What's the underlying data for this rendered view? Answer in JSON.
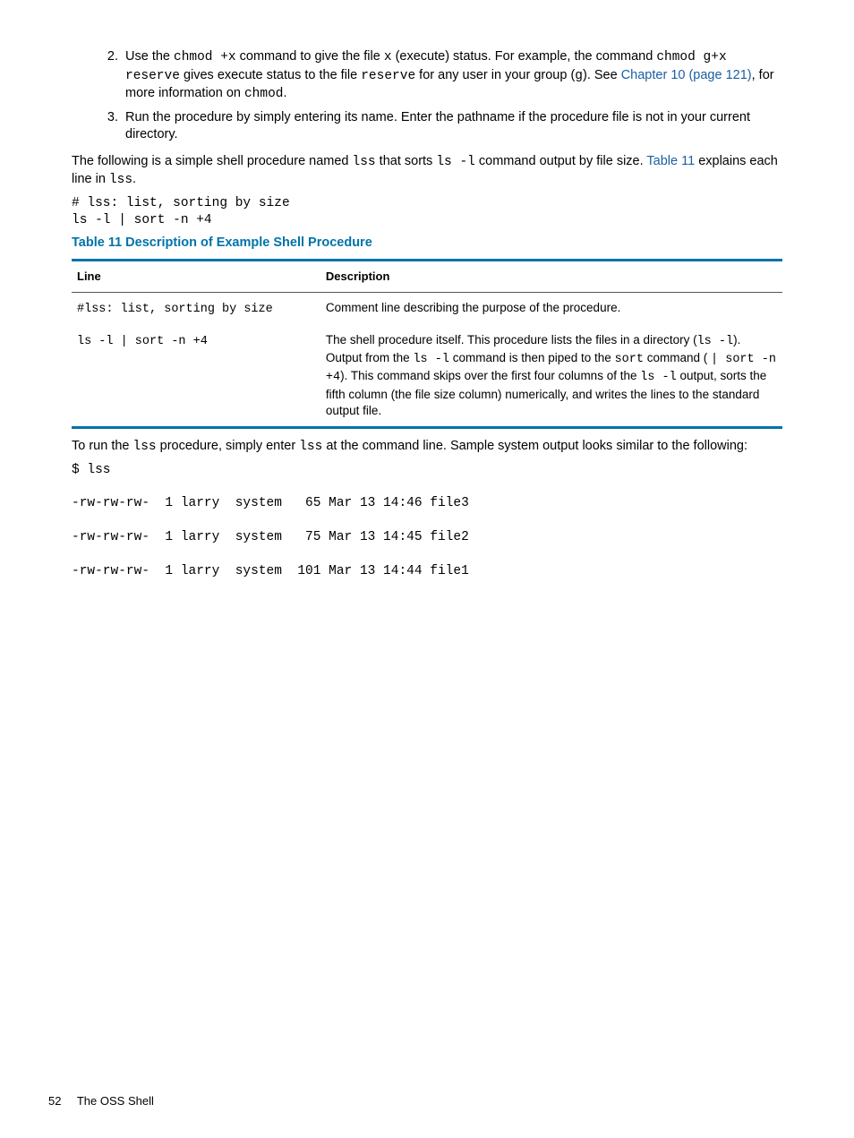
{
  "colors": {
    "accent": "#0073a8",
    "link": "#1a5fa3",
    "rule": "#555555",
    "text": "#000000",
    "background": "#ffffff"
  },
  "typography": {
    "body_family": "Arial, Helvetica, sans-serif",
    "mono_family": "Courier New, Courier, monospace",
    "body_size_pt": 11,
    "table_header_size_pt": 10,
    "table_body_size_pt": 10
  },
  "steps": {
    "start": 2,
    "items": [
      {
        "runs": [
          {
            "t": "Use the "
          },
          {
            "t": "chmod +x",
            "mono": true
          },
          {
            "t": " command to give the file "
          },
          {
            "t": "x",
            "mono": true
          },
          {
            "t": " (execute) status. For example, the command "
          },
          {
            "t": "chmod g+x reserve",
            "mono": true
          },
          {
            "t": " gives execute status to the file "
          },
          {
            "t": "reserve",
            "mono": true
          },
          {
            "t": " for any user in your group ("
          },
          {
            "t": "g",
            "mono": true
          },
          {
            "t": "). See "
          },
          {
            "t": "Chapter 10 (page 121)",
            "link": true
          },
          {
            "t": ", for more information on "
          },
          {
            "t": "chmod",
            "mono": true
          },
          {
            "t": "."
          }
        ]
      },
      {
        "runs": [
          {
            "t": "Run the procedure by simply entering its name. Enter the pathname if the procedure file is not in your current directory."
          }
        ]
      }
    ]
  },
  "intro": {
    "runs": [
      {
        "t": "The following is a simple shell procedure named "
      },
      {
        "t": "lss",
        "mono": true
      },
      {
        "t": " that sorts "
      },
      {
        "t": "ls -l",
        "mono": true
      },
      {
        "t": " command output by file size. "
      },
      {
        "t": "Table 11",
        "link": true
      },
      {
        "t": " explains each line in "
      },
      {
        "t": "lss",
        "mono": true
      },
      {
        "t": "."
      }
    ]
  },
  "code1": "# lss: list, sorting by size\nls -l | sort -n +4",
  "table": {
    "title": "Table 11 Description of Example Shell Procedure",
    "columns": [
      "Line",
      "Description"
    ],
    "col_widths_pct": [
      35,
      65
    ],
    "border_top_color": "#0073a8",
    "border_bottom_color": "#0073a8",
    "header_rule_color": "#555555",
    "rows": [
      {
        "line_runs": [
          {
            "t": "#lss: list, sorting by size",
            "mono": true
          }
        ],
        "desc_runs": [
          {
            "t": "Comment line describing the purpose of the procedure."
          }
        ]
      },
      {
        "line_runs": [
          {
            "t": "ls -l | sort -n +4",
            "mono": true
          }
        ],
        "desc_runs": [
          {
            "t": "The shell procedure itself. This procedure lists the files in a directory ("
          },
          {
            "t": "ls -l",
            "mono": true
          },
          {
            "t": "). Output from the "
          },
          {
            "t": "ls -l",
            "mono": true
          },
          {
            "t": " command is then piped to the "
          },
          {
            "t": "sort",
            "mono": true
          },
          {
            "t": " command ( "
          },
          {
            "t": "| sort -n +4",
            "mono": true
          },
          {
            "t": "). This command skips over the first four columns of the "
          },
          {
            "t": "ls -l",
            "mono": true
          },
          {
            "t": " output, sorts the fifth column (the file size column) numerically, and writes the lines to the standard output file."
          }
        ]
      }
    ]
  },
  "after_table": {
    "runs": [
      {
        "t": "To run the "
      },
      {
        "t": "lss",
        "mono": true
      },
      {
        "t": " procedure, simply enter "
      },
      {
        "t": "lss",
        "mono": true
      },
      {
        "t": " at the command line. Sample system output looks similar to the following:"
      }
    ]
  },
  "code2": "$ lss\n\n-rw-rw-rw-  1 larry  system   65 Mar 13 14:46 file3\n\n-rw-rw-rw-  1 larry  system   75 Mar 13 14:45 file2\n\n-rw-rw-rw-  1 larry  system  101 Mar 13 14:44 file1",
  "footer": {
    "page_number": "52",
    "section": "The OSS Shell"
  }
}
